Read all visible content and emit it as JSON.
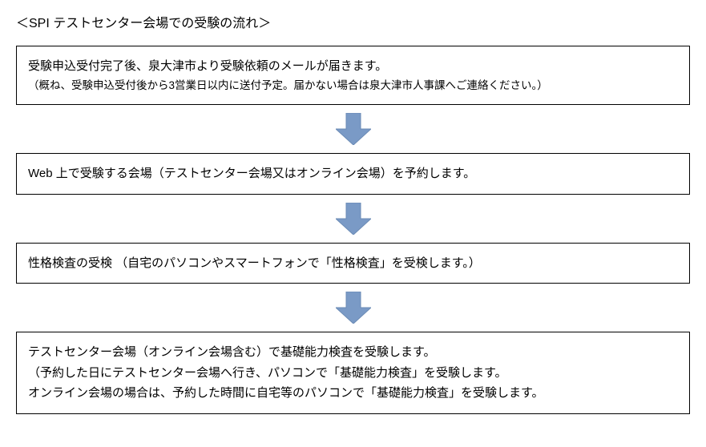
{
  "title": "＜SPI テストセンター会場での受験の流れ＞",
  "arrow": {
    "fill": "#7a9ac6",
    "stroke": "#6b8bb5"
  },
  "steps": [
    {
      "lines": [
        {
          "text": "受験申込受付完了後、泉大津市より受験依頼のメールが届きます。",
          "small": false
        },
        {
          "text": "（概ね、受験申込受付後から3営業日以内に送付予定。届かない場合は泉大津市人事課へご連絡ください。）",
          "small": true
        }
      ]
    },
    {
      "lines": [
        {
          "text": "Web 上で受験する会場（テストセンター会場又はオンライン会場）を予約します。",
          "small": false
        }
      ]
    },
    {
      "lines": [
        {
          "text": "性格検査の受検 （自宅のパソコンやスマートフォンで「性格検査」を受検します。）",
          "small": false
        }
      ]
    },
    {
      "lines": [
        {
          "text": "テストセンター会場（オンライン会場含む）で基礎能力検査を受験します。",
          "small": false
        },
        {
          "text": "（予約した日にテストセンター会場へ行き、パソコンで「基礎能力検査」を受験します。",
          "small": false
        },
        {
          "text": "オンライン会場の場合は、予約した時間に自宅等のパソコンで「基礎能力検査」を受験します。",
          "small": false
        }
      ]
    }
  ]
}
